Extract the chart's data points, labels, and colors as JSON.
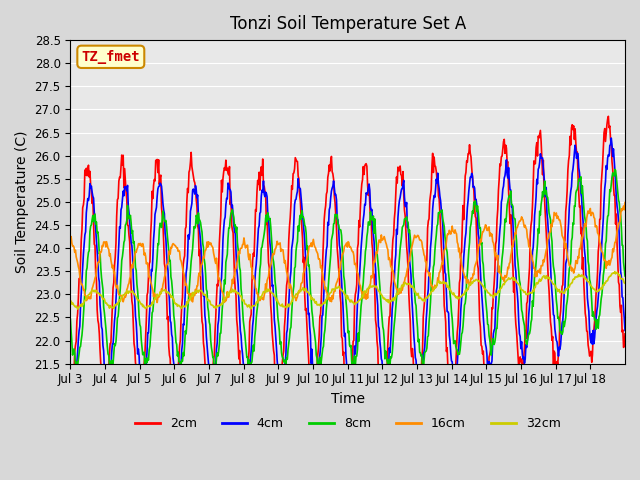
{
  "title": "Tonzi Soil Temperature Set A",
  "xlabel": "Time",
  "ylabel": "Soil Temperature (C)",
  "ylim": [
    21.5,
    28.5
  ],
  "yticks": [
    21.5,
    22.0,
    22.5,
    23.0,
    23.5,
    24.0,
    24.5,
    25.0,
    25.5,
    26.0,
    26.5,
    27.0,
    27.5,
    28.0,
    28.5
  ],
  "xtick_labels": [
    "Jul 3",
    "Jul 4",
    "Jul 5",
    "Jul 6",
    "Jul 7",
    "Jul 8",
    "Jul 9",
    "Jul 10",
    "Jul 11",
    "Jul 12",
    "Jul 13",
    "Jul 14",
    "Jul 15",
    "Jul 16",
    "Jul 17",
    "Jul 18"
  ],
  "line_colors": [
    "#ff0000",
    "#0000ff",
    "#00cc00",
    "#ff8c00",
    "#cccc00"
  ],
  "line_labels": [
    "2cm",
    "4cm",
    "8cm",
    "16cm",
    "32cm"
  ],
  "annotation_text": "TZ_fmet",
  "annotation_box_facecolor": "#ffffcc",
  "annotation_box_edgecolor": "#cc8800",
  "annotation_text_color": "#cc0000",
  "fig_facecolor": "#d8d8d8",
  "ax_facecolor": "#e8e8e8",
  "n_days": 16,
  "points_per_day": 48,
  "seed": 42
}
